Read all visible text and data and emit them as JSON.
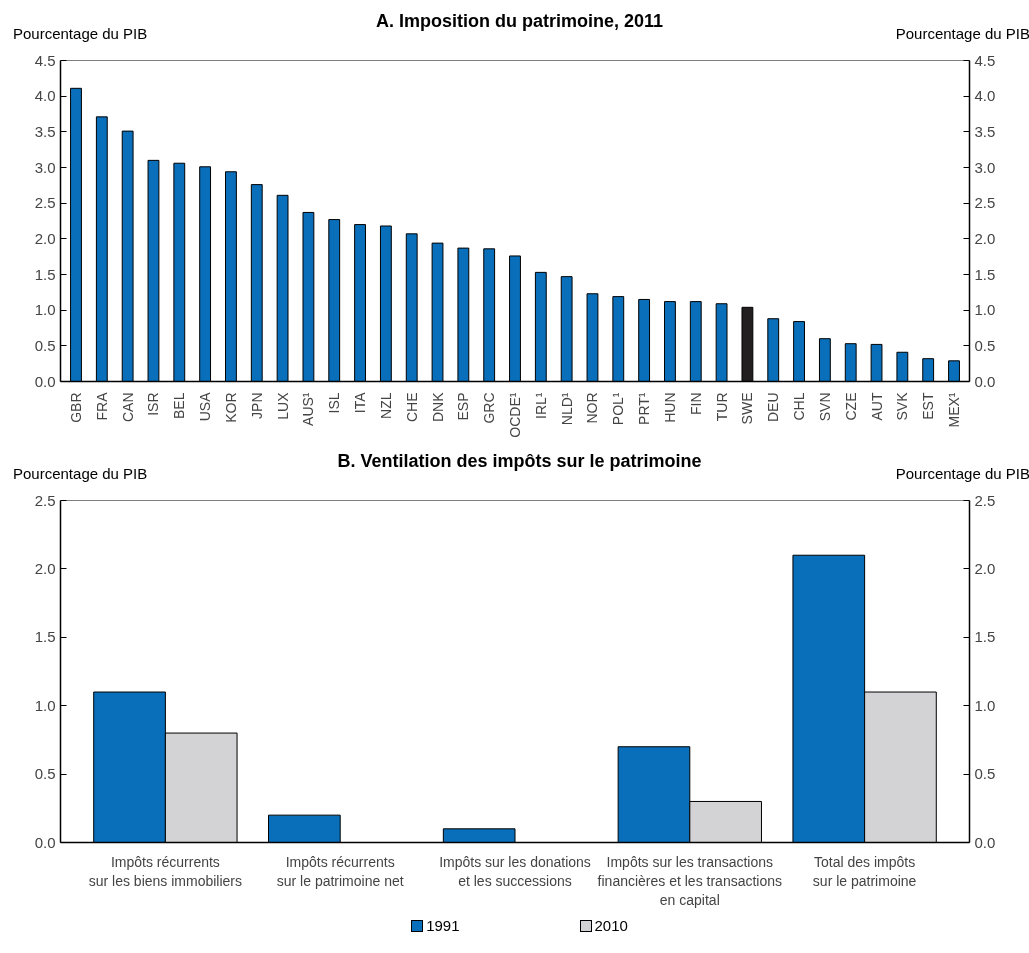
{
  "chart_data": [
    {
      "type": "bar",
      "title": "A. Imposition du patrimoine, 2011",
      "ylabel": "Pourcentage du PIB",
      "y2label": "Pourcentage du PIB",
      "categories": [
        "GBR",
        "FRA",
        "CAN",
        "ISR",
        "BEL",
        "USA",
        "KOR",
        "JPN",
        "LUX",
        "AUS¹",
        "ISL",
        "ITA",
        "NZL",
        "CHE",
        "DNK",
        "ESP",
        "GRC",
        "OCDE¹",
        "IRL¹",
        "NLD¹",
        "NOR",
        "POL¹",
        "PRT¹",
        "HUN",
        "FIN",
        "TUR",
        "SWE",
        "DEU",
        "CHL",
        "SVN",
        "CZE",
        "AUT",
        "SVK",
        "EST",
        "MEX¹"
      ],
      "values": [
        4.11,
        3.71,
        3.51,
        3.1,
        3.06,
        3.01,
        2.94,
        2.76,
        2.61,
        2.37,
        2.27,
        2.2,
        2.18,
        2.07,
        1.94,
        1.87,
        1.86,
        1.76,
        1.53,
        1.47,
        1.23,
        1.19,
        1.15,
        1.12,
        1.12,
        1.09,
        1.04,
        0.88,
        0.84,
        0.6,
        0.53,
        0.52,
        0.41,
        0.32,
        0.29
      ],
      "colors": [
        "#0a6fba",
        "#0a6fba",
        "#0a6fba",
        "#0a6fba",
        "#0a6fba",
        "#0a6fba",
        "#0a6fba",
        "#0a6fba",
        "#0a6fba",
        "#0a6fba",
        "#0a6fba",
        "#0a6fba",
        "#0a6fba",
        "#0a6fba",
        "#0a6fba",
        "#0a6fba",
        "#0a6fba",
        "#0a6fba",
        "#0a6fba",
        "#0a6fba",
        "#0a6fba",
        "#0a6fba",
        "#0a6fba",
        "#0a6fba",
        "#0a6fba",
        "#0a6fba",
        "#231f20",
        "#0a6fba",
        "#0a6fba",
        "#0a6fba",
        "#0a6fba",
        "#0a6fba",
        "#0a6fba",
        "#0a6fba",
        "#0a6fba"
      ],
      "ylim": [
        0,
        4.5
      ],
      "yticks": [
        {
          "value": 0,
          "label": "0.0"
        },
        0.5,
        {
          "value": 1,
          "label": "1.0"
        },
        1.5,
        {
          "value": 2,
          "label": "2.0"
        },
        2.5,
        {
          "value": 3,
          "label": "3.0"
        },
        3.5,
        {
          "value": 4,
          "label": "4.0"
        },
        4.5
      ],
      "y2lim": [
        0,
        4.5
      ],
      "y2ticks": [
        {
          "value": 0,
          "label": "0.0"
        },
        0.5,
        {
          "value": 1,
          "label": "1.0"
        },
        1.5,
        {
          "value": 2,
          "label": "2.0"
        },
        2.5,
        {
          "value": 3,
          "label": "3.0"
        },
        3.5,
        {
          "value": 4,
          "label": "4.0"
        },
        4.5
      ],
      "grid": false,
      "legend": false
    },
    {
      "type": "bar",
      "title": "B. Ventilation des impôts sur le patrimoine",
      "ylabel": "Pourcentage du PIB",
      "y2label": "Pourcentage du PIB",
      "categories": [
        "Impôts récurrents\nsur les biens immobiliers",
        "Impôts récurrents\nsur le patrimoine net",
        "Impôts sur les donations\net les successions",
        "Impôts sur les transactions\nfinancières et les transactions\nen capital",
        "Total des impôts\nsur le patrimoine"
      ],
      "series": [
        {
          "name": "1991",
          "color": "#0a6fba",
          "values": [
            1.1,
            0.2,
            0.1,
            0.7,
            2.1
          ]
        },
        {
          "name": "2010",
          "color": "#d3d3d5",
          "values": [
            0.8,
            null,
            null,
            0.3,
            1.1
          ]
        }
      ],
      "ylim": [
        0,
        2.5
      ],
      "yticks": [
        {
          "value": 0,
          "label": "0.0"
        },
        0.5,
        {
          "value": 1,
          "label": "1.0"
        },
        1.5,
        {
          "value": 2,
          "label": "2.0"
        },
        2.5
      ],
      "y2lim": [
        0,
        2.5
      ],
      "y2ticks": [
        {
          "value": 0,
          "label": "0.0"
        },
        0.5,
        {
          "value": 1,
          "label": "1.0"
        },
        1.5,
        {
          "value": 2,
          "label": "2.0"
        },
        2.5
      ],
      "grid": false,
      "legend": "bottom"
    }
  ]
}
